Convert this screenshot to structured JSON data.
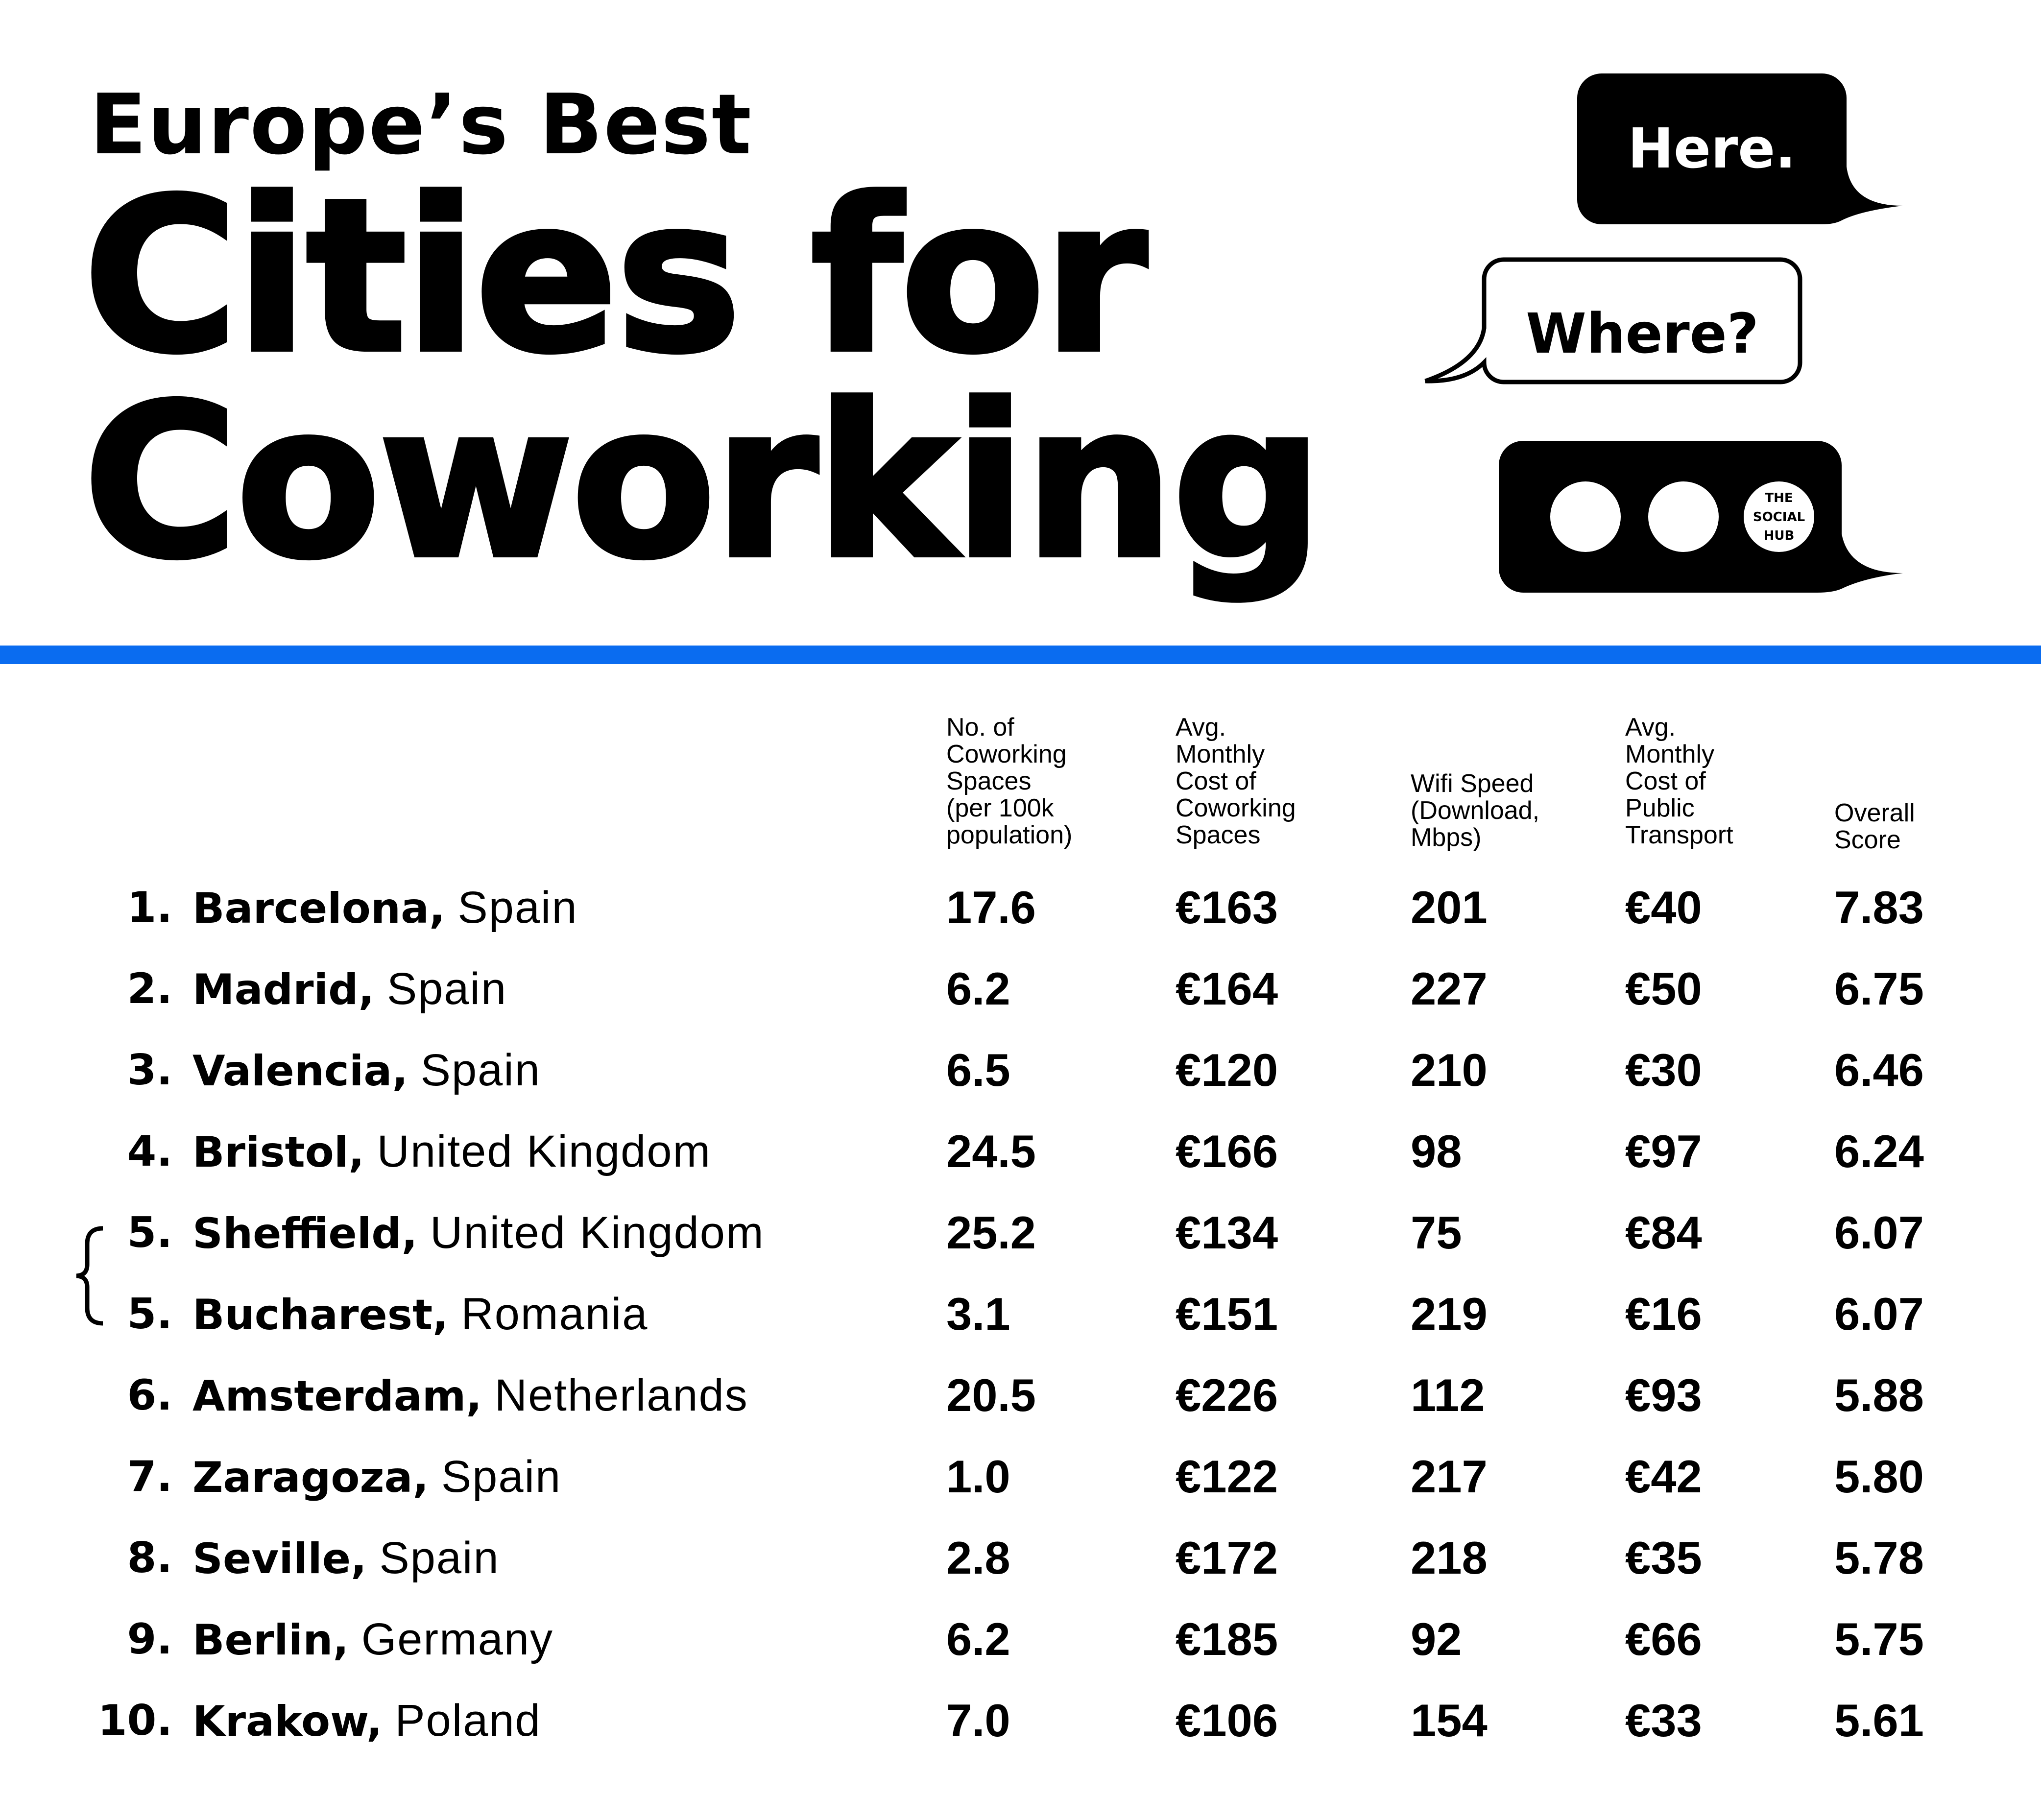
{
  "header": {
    "title_top": "Europe’s Best",
    "title_line1": "Cities for",
    "title_line2": "Coworking"
  },
  "bubbles": {
    "here": "Here.",
    "where": "Where?",
    "brand_line1": "THE",
    "brand_line2": "SOCIAL",
    "brand_line3": "HUB"
  },
  "colors": {
    "accent": "#0a6cf0",
    "ink": "#000000",
    "paper": "#ffffff"
  },
  "chart_data": {
    "type": "table",
    "columns": [
      "No. of\nCoworking\nSpaces\n(per 100k\npopulation)",
      "Avg.\nMonthly\nCost of\nCoworking\nSpaces",
      "Wifi Speed\n(Download,\nMbps)",
      "Avg.\nMonthly\nCost of\nPublic\nTransport",
      "Overall\nScore"
    ],
    "rows": [
      {
        "rank": "1.",
        "city": "Barcelona,",
        "country": "Spain",
        "values": [
          "17.6",
          "€163",
          "201",
          "€40",
          "7.83"
        ]
      },
      {
        "rank": "2.",
        "city": "Madrid,",
        "country": "Spain",
        "values": [
          "6.2",
          "€164",
          "227",
          "€50",
          "6.75"
        ]
      },
      {
        "rank": "3.",
        "city": "Valencia,",
        "country": "Spain",
        "values": [
          "6.5",
          "€120",
          "210",
          "€30",
          "6.46"
        ]
      },
      {
        "rank": "4.",
        "city": "Bristol,",
        "country": "United Kingdom",
        "values": [
          "24.5",
          "€166",
          "98",
          "€97",
          "6.24"
        ]
      },
      {
        "rank": "5.",
        "city": "Sheffield,",
        "country": "United Kingdom",
        "values": [
          "25.2",
          "€134",
          "75",
          "€84",
          "6.07"
        ]
      },
      {
        "rank": "5.",
        "city": "Bucharest,",
        "country": "Romania",
        "values": [
          "3.1",
          "€151",
          "219",
          "€16",
          "6.07"
        ]
      },
      {
        "rank": "6.",
        "city": "Amsterdam,",
        "country": "Netherlands",
        "values": [
          "20.5",
          "€226",
          "112",
          "€93",
          "5.88"
        ]
      },
      {
        "rank": "7.",
        "city": "Zaragoza,",
        "country": "Spain",
        "values": [
          "1.0",
          "€122",
          "217",
          "€42",
          "5.80"
        ]
      },
      {
        "rank": "8.",
        "city": "Seville,",
        "country": "Spain",
        "values": [
          "2.8",
          "€172",
          "218",
          "€35",
          "5.78"
        ]
      },
      {
        "rank": "9.",
        "city": "Berlin,",
        "country": "Germany",
        "values": [
          "6.2",
          "€185",
          "92",
          "€66",
          "5.75"
        ]
      },
      {
        "rank": "10.",
        "city": "Krakow,",
        "country": "Poland",
        "values": [
          "7.0",
          "€106",
          "154",
          "€33",
          "5.61"
        ]
      }
    ]
  }
}
